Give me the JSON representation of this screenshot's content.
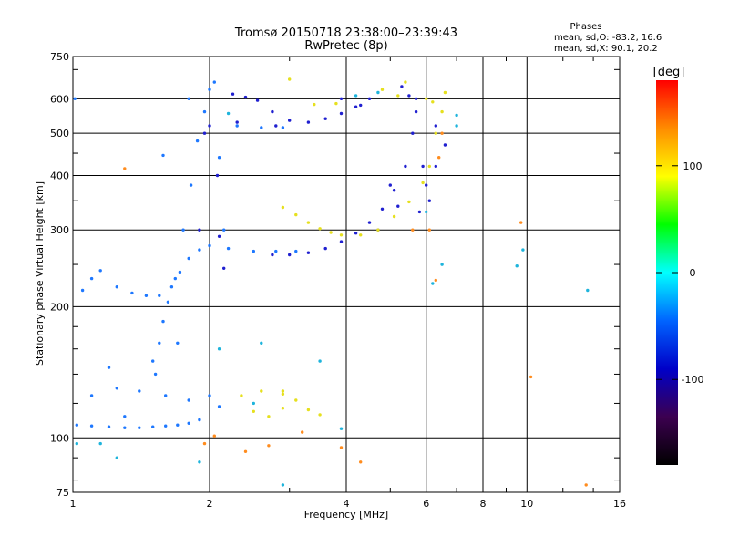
{
  "chart_data": {
    "type": "scatter",
    "title": "Tromsø 20150718 23:38:00–23:39:43",
    "subtitle": "RwPretec (8p)",
    "xlabel": "Frequency [MHz]",
    "ylabel": "Stationary phase Virtual Height [km]",
    "x_scale": "log",
    "y_scale": "log",
    "xlim": [
      1,
      16
    ],
    "ylim": [
      75,
      750
    ],
    "x_ticks": [
      1,
      2,
      4,
      6,
      8,
      10,
      16
    ],
    "y_ticks": [
      75,
      100,
      200,
      300,
      400,
      500,
      600,
      750
    ],
    "grid": true,
    "stats": {
      "heading": "Phases",
      "line_o": "mean, sd,O: -83.2, 16.6",
      "line_x": "mean, sd,X:  90.1, 20.2"
    },
    "colorbar": {
      "label": "[deg]",
      "range": [
        -180,
        180
      ],
      "ticks": [
        100,
        0,
        -100
      ],
      "colors": [
        "#ff0000",
        "#ff8c00",
        "#ffff00",
        "#00ff00",
        "#00ffff",
        "#0064ff",
        "#0000c8",
        "#3c0050",
        "#000000"
      ]
    },
    "series": [
      {
        "points": [
          [
            1.02,
            107
          ],
          [
            1.1,
            106.5
          ],
          [
            1.2,
            106
          ],
          [
            1.3,
            105.5
          ],
          [
            1.4,
            105.5
          ],
          [
            1.5,
            106
          ],
          [
            1.6,
            106.5
          ],
          [
            1.7,
            107
          ],
          [
            1.8,
            108
          ],
          [
            1.9,
            110
          ],
          [
            1.05,
            218
          ],
          [
            1.1,
            232
          ],
          [
            1.15,
            242
          ],
          [
            1.25,
            222
          ],
          [
            1.35,
            215
          ],
          [
            1.45,
            212
          ],
          [
            1.55,
            212
          ],
          [
            1.65,
            222
          ],
          [
            1.72,
            240
          ],
          [
            1.8,
            258
          ],
          [
            1.9,
            270
          ],
          [
            2.0,
            276
          ],
          [
            2.2,
            272
          ],
          [
            2.5,
            268
          ],
          [
            2.8,
            268
          ],
          [
            3.1,
            268
          ],
          [
            1.52,
            140
          ],
          [
            1.55,
            165
          ],
          [
            1.58,
            185
          ],
          [
            1.62,
            205
          ],
          [
            1.68,
            232
          ],
          [
            1.75,
            300
          ],
          [
            1.82,
            380
          ],
          [
            1.88,
            480
          ],
          [
            1.95,
            560
          ],
          [
            2.0,
            630
          ],
          [
            2.05,
            655
          ],
          [
            2.3,
            520
          ],
          [
            2.6,
            515
          ],
          [
            2.9,
            515
          ],
          [
            1.1,
            125
          ],
          [
            1.25,
            130
          ],
          [
            1.4,
            128
          ],
          [
            1.6,
            125
          ],
          [
            1.8,
            122
          ],
          [
            2.0,
            125
          ],
          [
            2.1,
            118
          ],
          [
            1.2,
            145
          ],
          [
            1.5,
            150
          ],
          [
            1.7,
            165
          ],
          [
            1.3,
            112
          ],
          [
            1.58,
            445
          ],
          [
            2.1,
            440
          ],
          [
            2.15,
            300
          ],
          [
            1.01,
            600
          ],
          [
            1.8,
            600
          ]
        ]
      },
      {
        "points": [
          [
            2.25,
            615
          ],
          [
            2.4,
            605
          ],
          [
            2.55,
            595
          ],
          [
            2.75,
            560
          ],
          [
            3.0,
            535
          ],
          [
            3.3,
            530
          ],
          [
            3.6,
            540
          ],
          [
            3.9,
            555
          ],
          [
            4.2,
            575
          ],
          [
            4.5,
            600
          ],
          [
            2.75,
            263
          ],
          [
            3.0,
            263
          ],
          [
            3.3,
            266
          ],
          [
            3.6,
            272
          ],
          [
            3.9,
            282
          ],
          [
            4.2,
            295
          ],
          [
            4.5,
            312
          ],
          [
            4.8,
            335
          ],
          [
            5.1,
            370
          ],
          [
            5.4,
            420
          ],
          [
            5.6,
            500
          ],
          [
            5.7,
            560
          ],
          [
            5.5,
            610
          ],
          [
            5.7,
            600
          ],
          [
            5.9,
            420
          ],
          [
            6.0,
            380
          ],
          [
            6.3,
            420
          ],
          [
            6.6,
            470
          ],
          [
            2.1,
            290
          ],
          [
            2.15,
            245
          ],
          [
            2.3,
            530
          ],
          [
            2.0,
            520
          ],
          [
            2.08,
            400
          ],
          [
            1.95,
            500
          ],
          [
            2.8,
            520
          ],
          [
            3.9,
            600
          ],
          [
            4.3,
            580
          ],
          [
            5.0,
            380
          ],
          [
            5.2,
            340
          ],
          [
            4.7,
            300
          ],
          [
            5.3,
            640
          ],
          [
            5.8,
            330
          ],
          [
            6.1,
            350
          ],
          [
            6.3,
            520
          ],
          [
            1.9,
            300
          ]
        ]
      },
      {
        "points": [
          [
            2.9,
            338
          ],
          [
            3.1,
            325
          ],
          [
            3.3,
            312
          ],
          [
            3.5,
            302
          ],
          [
            3.7,
            296
          ],
          [
            3.9,
            292
          ],
          [
            4.3,
            292
          ],
          [
            4.7,
            300
          ],
          [
            5.1,
            322
          ],
          [
            5.5,
            348
          ],
          [
            5.9,
            385
          ],
          [
            6.1,
            420
          ],
          [
            6.3,
            500
          ],
          [
            6.5,
            560
          ],
          [
            6.2,
            590
          ],
          [
            6.6,
            620
          ],
          [
            6.0,
            600
          ],
          [
            3.4,
            582
          ],
          [
            3.8,
            585
          ],
          [
            4.8,
            630
          ],
          [
            5.2,
            610
          ],
          [
            5.4,
            655
          ],
          [
            2.35,
            125
          ],
          [
            2.6,
            128
          ],
          [
            2.9,
            126
          ],
          [
            3.1,
            122
          ],
          [
            3.3,
            116
          ],
          [
            3.5,
            113
          ],
          [
            2.5,
            115
          ],
          [
            2.7,
            112
          ],
          [
            2.9,
            117
          ],
          [
            3.0,
            665
          ],
          [
            2.9,
            128
          ]
        ]
      },
      {
        "points": [
          [
            1.95,
            97
          ],
          [
            2.05,
            101
          ],
          [
            2.4,
            93
          ],
          [
            2.7,
            96
          ],
          [
            3.2,
            103
          ],
          [
            4.3,
            88
          ],
          [
            6.1,
            300
          ],
          [
            6.3,
            230
          ],
          [
            9.7,
            312
          ],
          [
            10.2,
            138
          ],
          [
            13.5,
            78
          ],
          [
            1.3,
            415
          ],
          [
            3.9,
            95
          ],
          [
            6.4,
            440
          ],
          [
            5.6,
            300
          ],
          [
            6.5,
            500
          ]
        ]
      },
      {
        "points": [
          [
            1.02,
            97
          ],
          [
            1.9,
            88
          ],
          [
            2.6,
            165
          ],
          [
            7.0,
            550
          ],
          [
            7.0,
            520
          ],
          [
            3.9,
            105
          ],
          [
            1.25,
            90
          ],
          [
            2.1,
            160
          ],
          [
            6.0,
            330
          ],
          [
            9.8,
            270
          ],
          [
            13.6,
            218
          ],
          [
            2.5,
            120
          ],
          [
            3.5,
            150
          ],
          [
            1.15,
            97
          ],
          [
            2.2,
            555
          ],
          [
            6.5,
            250
          ],
          [
            6.2,
            226
          ],
          [
            2.9,
            78
          ],
          [
            9.5,
            248
          ],
          [
            4.7,
            620
          ],
          [
            4.2,
            610
          ]
        ]
      }
    ]
  }
}
